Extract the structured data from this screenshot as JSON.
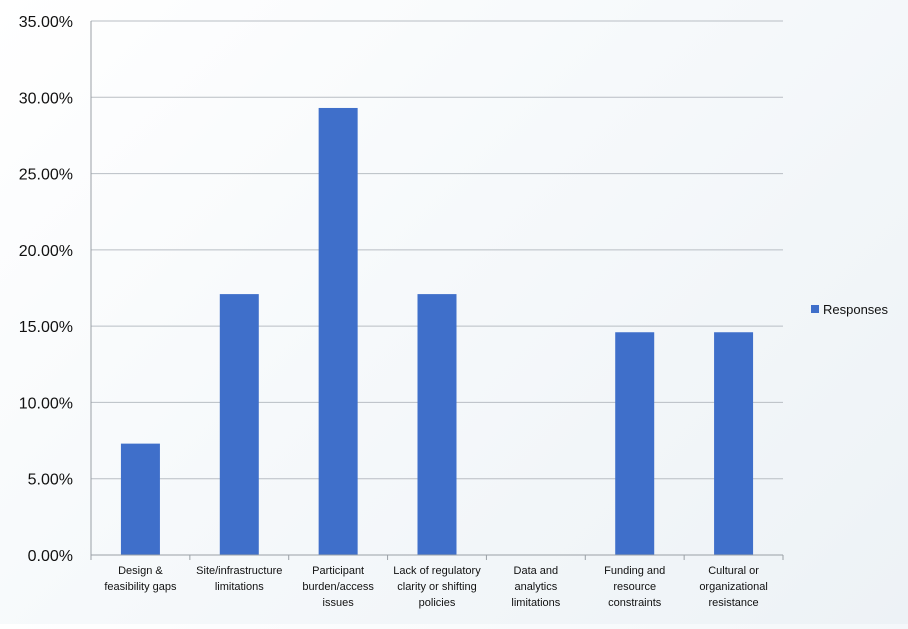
{
  "chart_data": {
    "type": "bar",
    "categories": [
      [
        "Design &",
        "feasibility gaps"
      ],
      [
        "Site/infrastructure",
        "limitations"
      ],
      [
        "Participant",
        "burden/access",
        "issues"
      ],
      [
        "Lack of regulatory",
        "clarity or shifting",
        "policies"
      ],
      [
        "Data and",
        "analytics",
        "limitations"
      ],
      [
        "Funding and",
        "resource",
        "constraints"
      ],
      [
        "Cultural or",
        "organizational",
        "resistance"
      ]
    ],
    "series": [
      {
        "name": "Responses",
        "color": "#3f6fca",
        "values": [
          7.3,
          17.1,
          29.3,
          17.1,
          0,
          14.6,
          14.6
        ]
      }
    ],
    "ylim": [
      0,
      35
    ],
    "yticks": [
      "0.00%",
      "5.00%",
      "10.00%",
      "15.00%",
      "20.00%",
      "25.00%",
      "30.00%",
      "35.00%"
    ],
    "title": "",
    "xlabel": "",
    "ylabel": "",
    "grid": true,
    "legend_position": "right"
  }
}
